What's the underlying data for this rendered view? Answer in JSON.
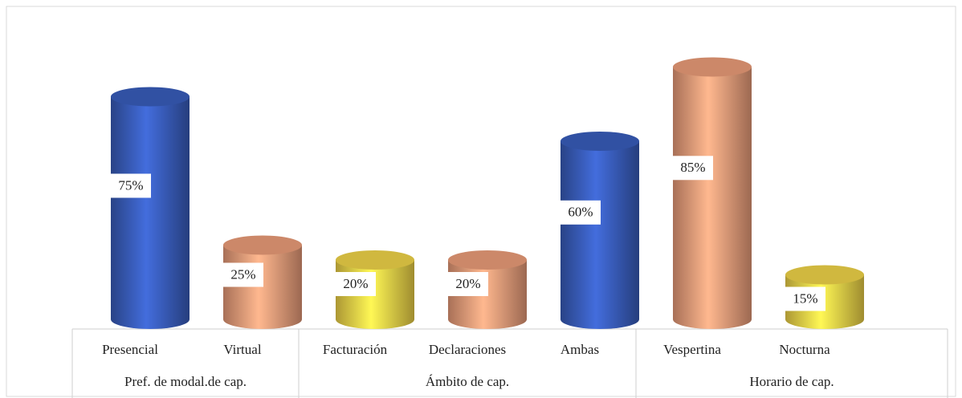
{
  "chart_data": {
    "type": "cylinder",
    "groups": [
      {
        "name": "Pref. de modal.de cap.",
        "categories": [
          "Presencial",
          "Virtual"
        ]
      },
      {
        "name": "Ámbito de cap.",
        "categories": [
          "Facturación",
          "Declaraciones",
          "Ambas"
        ]
      },
      {
        "name": "Horario de cap.",
        "categories": [
          "Vespertina",
          "Nocturna"
        ]
      }
    ],
    "values": [
      75,
      25,
      20,
      20,
      60,
      85,
      15
    ],
    "value_labels": [
      "75%",
      "25%",
      "20%",
      "20%",
      "60%",
      "85%",
      "15%"
    ],
    "colors": [
      "#3a5fc0",
      "#f0a07c",
      "#f5d84a",
      "#f0a07c",
      "#3a5fc0",
      "#f0a07c",
      "#f5d84a"
    ]
  }
}
